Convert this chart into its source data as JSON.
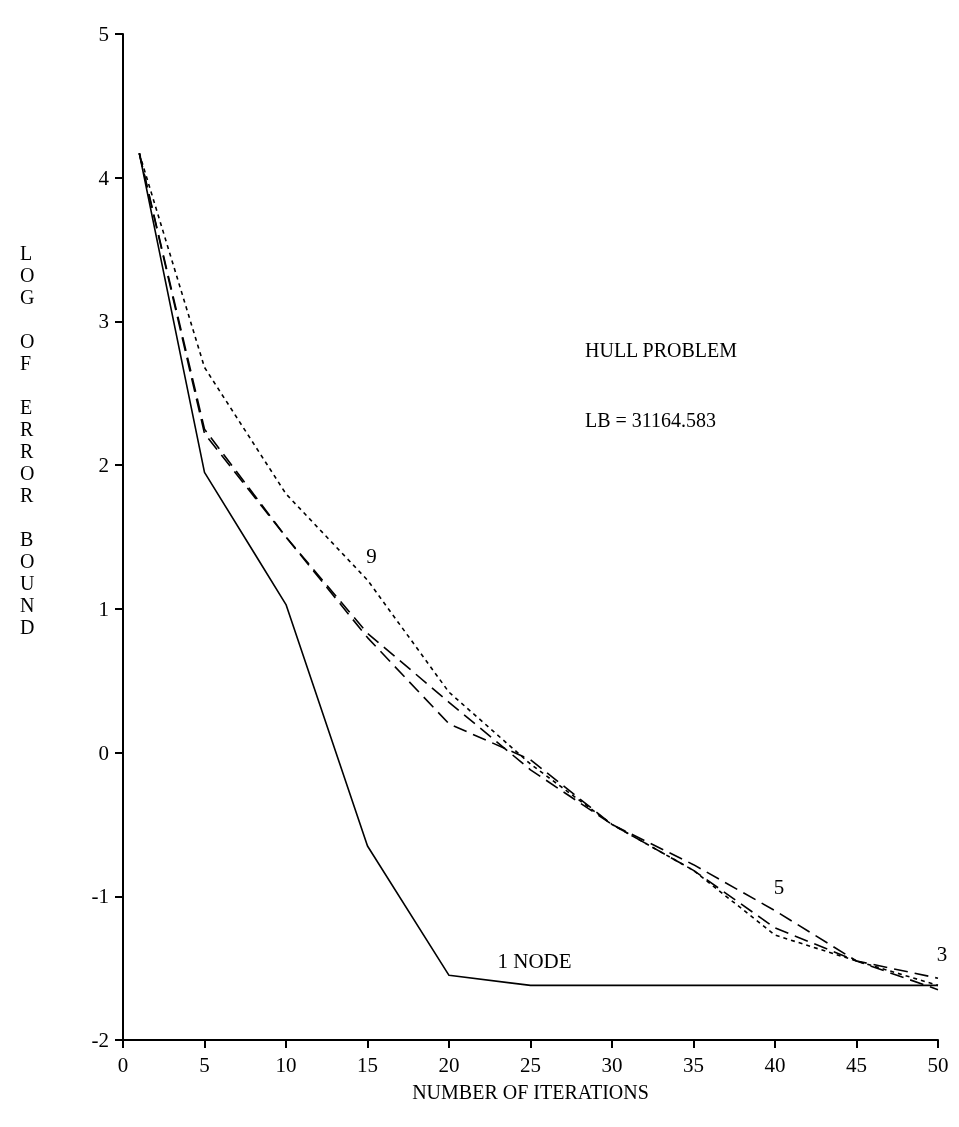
{
  "chart_data": {
    "type": "line",
    "xlabel": "NUMBER OF ITERATIONS",
    "ylabel": "LOG OF ERROR BOUND",
    "annotations": [
      "HULL PROBLEM",
      "LB = 31164.583",
      {
        "text": "1 NODE",
        "x": 25,
        "y": -1.62
      },
      {
        "text": "9",
        "x": 15,
        "y": 1.2
      },
      {
        "text": "5",
        "x": 40,
        "y": -1.1
      },
      {
        "text": "3",
        "x": 50,
        "y": -1.57
      }
    ],
    "series": [
      {
        "color": "#000000",
        "line_style": "solid",
        "x": [
          1,
          5,
          10,
          15,
          20,
          25,
          50
        ],
        "values": [
          4.17,
          1.95,
          1.03,
          -0.65,
          -1.55,
          -1.62,
          -1.62
        ]
      },
      {
        "color": "#000000",
        "line_style": "dotted",
        "x": [
          1,
          5,
          10,
          15,
          20,
          25,
          30,
          35,
          40,
          45,
          50
        ],
        "values": [
          4.17,
          2.68,
          1.8,
          1.2,
          0.42,
          -0.08,
          -0.5,
          -0.82,
          -1.27,
          -1.45,
          -1.62
        ]
      },
      {
        "color": "#000000",
        "line_style": "dashed",
        "x": [
          1,
          5,
          10,
          15,
          20,
          25,
          30,
          35,
          40,
          45,
          50
        ],
        "values": [
          4.17,
          2.25,
          1.5,
          0.8,
          0.2,
          -0.05,
          -0.5,
          -0.78,
          -1.1,
          -1.45,
          -1.65
        ]
      },
      {
        "color": "#000000",
        "line_style": "dashed",
        "x": [
          1,
          5,
          10,
          15,
          20,
          25,
          30,
          35,
          40,
          45,
          50
        ],
        "values": [
          4.17,
          2.22,
          1.5,
          0.83,
          0.35,
          -0.12,
          -0.5,
          -0.82,
          -1.22,
          -1.45,
          -1.57
        ]
      }
    ],
    "xlim": [
      0,
      50
    ],
    "xticks": [
      0,
      5,
      10,
      15,
      20,
      25,
      30,
      35,
      40,
      45,
      50
    ],
    "ylim": [
      -2,
      5
    ],
    "yticks": [
      -2,
      -1,
      0,
      1,
      2,
      3,
      4,
      5
    ],
    "grid": false,
    "marker": "none"
  }
}
